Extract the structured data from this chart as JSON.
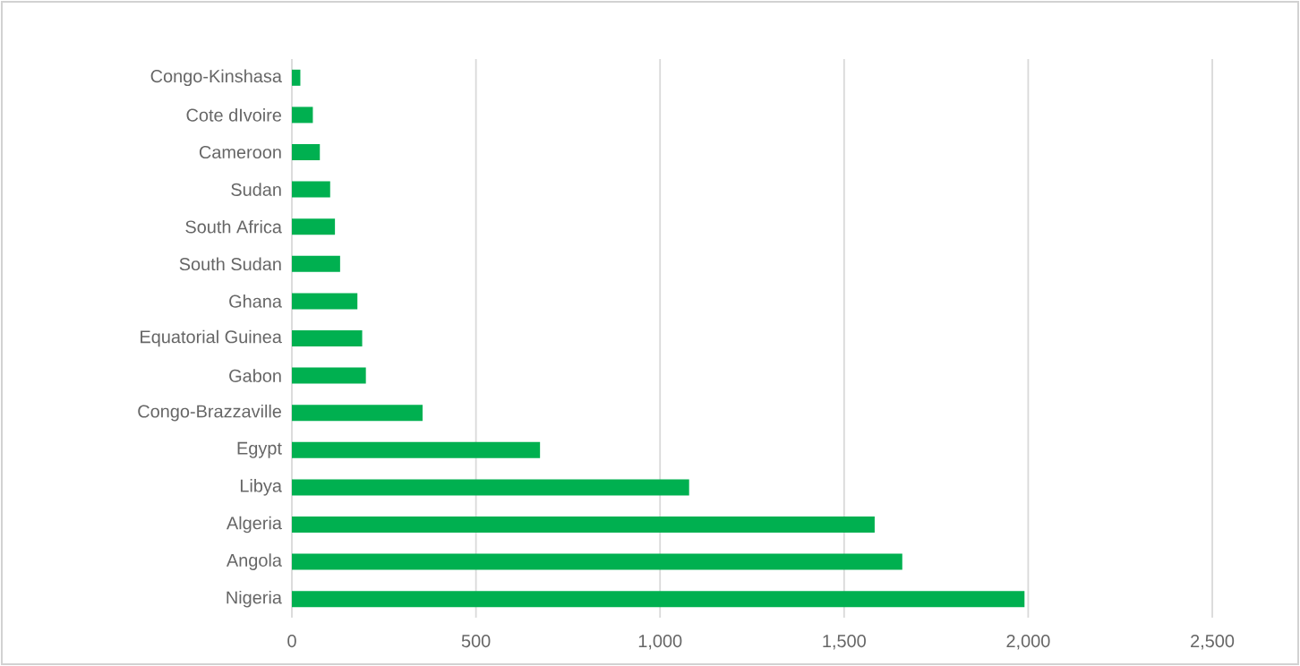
{
  "chart_data": {
    "type": "bar",
    "orientation": "horizontal",
    "categories": [
      "Congo-Kinshasa",
      "Cote dIvoire",
      "Cameroon",
      "Sudan",
      "South Africa",
      "South Sudan",
      "Ghana",
      "Equatorial Guinea",
      "Gabon",
      "Congo-Brazzaville",
      "Egypt",
      "Libya",
      "Algeria",
      "Angola",
      "Nigeria"
    ],
    "values": [
      23,
      57,
      76,
      104,
      117,
      131,
      178,
      191,
      201,
      355,
      674,
      1079,
      1583,
      1658,
      1990
    ],
    "color": "#00b050",
    "xlim": [
      0,
      2500
    ],
    "xticks": [
      0,
      500,
      {
        "value": 1000,
        "label": "1,000"
      },
      {
        "value": 1500,
        "label": "1,500"
      },
      {
        "value": 2000,
        "label": "2,000"
      },
      {
        "value": 2500,
        "label": "2,500"
      }
    ],
    "grid": "x"
  }
}
